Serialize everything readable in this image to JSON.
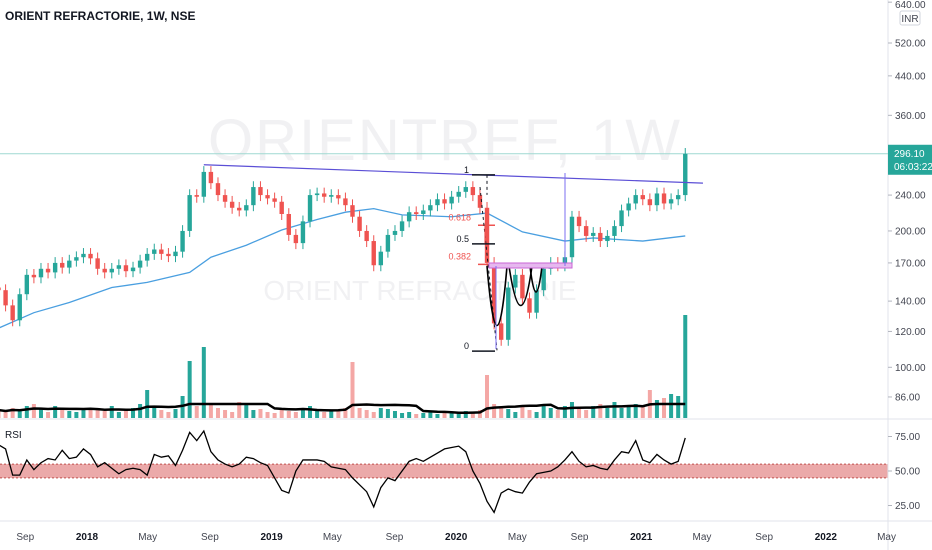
{
  "header": {
    "title": "ORIENT REFRACTORIE, 1W, NSE",
    "watermark_symbol": "ORIENTREF, 1W",
    "watermark_name": "ORIENT REFRACTORIE"
  },
  "colors": {
    "up": "#26a69a",
    "down": "#ef5350",
    "volume_down": "#f4a7a5",
    "ma": "#4a9fe0",
    "trendline": "#5b4fd6",
    "rsi_band": "#e89a9a",
    "price_tag": "#26a69a",
    "zone": "#c966d6"
  },
  "chart_data": {
    "type": "candlestick",
    "interval": "1W",
    "price_axis": {
      "scale": "log",
      "currency": "INR",
      "ticks": [
        "640.00",
        "520.00",
        "440.00",
        "360.00",
        "240.00",
        "200.00",
        "170.00",
        "140.00",
        "120.00",
        "100.00",
        "86.00"
      ],
      "tick_values": [
        640,
        520,
        440,
        360,
        240,
        200,
        170,
        140,
        120,
        100,
        86
      ]
    },
    "last_price": {
      "value": "296.10",
      "countdown": "06:03:22"
    },
    "time_axis": {
      "ticks": [
        {
          "label": "Sep",
          "date": "2017-09-01",
          "bold": false
        },
        {
          "label": "2018",
          "date": "2018-01-01",
          "bold": true
        },
        {
          "label": "May",
          "date": "2018-05-01",
          "bold": false
        },
        {
          "label": "Sep",
          "date": "2018-09-01",
          "bold": false
        },
        {
          "label": "2019",
          "date": "2019-01-01",
          "bold": true
        },
        {
          "label": "May",
          "date": "2019-05-01",
          "bold": false
        },
        {
          "label": "Sep",
          "date": "2019-09-01",
          "bold": false
        },
        {
          "label": "2020",
          "date": "2020-01-01",
          "bold": true
        },
        {
          "label": "May",
          "date": "2020-05-01",
          "bold": false
        },
        {
          "label": "Sep",
          "date": "2020-09-01",
          "bold": false
        },
        {
          "label": "2021",
          "date": "2021-01-01",
          "bold": true
        },
        {
          "label": "May",
          "date": "2021-05-01",
          "bold": false
        },
        {
          "label": "Sep",
          "date": "2021-09-01",
          "bold": false
        },
        {
          "label": "2022",
          "date": "2022-01-01",
          "bold": true
        },
        {
          "label": "May",
          "date": "2022-05-01",
          "bold": false
        }
      ]
    },
    "dates": [
      "2017-07-10",
      "2017-07-24",
      "2017-08-07",
      "2017-08-21",
      "2017-09-04",
      "2017-09-18",
      "2017-10-02",
      "2017-10-16",
      "2017-10-30",
      "2017-11-13",
      "2017-11-27",
      "2017-12-11",
      "2017-12-25",
      "2018-01-08",
      "2018-01-22",
      "2018-02-05",
      "2018-02-19",
      "2018-03-05",
      "2018-03-19",
      "2018-04-02",
      "2018-04-16",
      "2018-04-30",
      "2018-05-14",
      "2018-05-28",
      "2018-06-11",
      "2018-06-25",
      "2018-07-09",
      "2018-07-23",
      "2018-08-06",
      "2018-08-20",
      "2018-09-03",
      "2018-09-17",
      "2018-10-01",
      "2018-10-15",
      "2018-10-29",
      "2018-11-12",
      "2018-11-26",
      "2018-12-10",
      "2018-12-24",
      "2019-01-07",
      "2019-01-21",
      "2019-02-04",
      "2019-02-18",
      "2019-03-04",
      "2019-03-18",
      "2019-04-01",
      "2019-04-15",
      "2019-04-29",
      "2019-05-13",
      "2019-05-27",
      "2019-06-10",
      "2019-06-24",
      "2019-07-08",
      "2019-07-22",
      "2019-08-05",
      "2019-08-19",
      "2019-09-02",
      "2019-09-16",
      "2019-09-30",
      "2019-10-14",
      "2019-10-28",
      "2019-11-11",
      "2019-11-25",
      "2019-12-09",
      "2019-12-23",
      "2020-01-06",
      "2020-01-20",
      "2020-02-03",
      "2020-02-17",
      "2020-03-02",
      "2020-03-16",
      "2020-03-30",
      "2020-04-13",
      "2020-04-27",
      "2020-05-11",
      "2020-05-25",
      "2020-06-08",
      "2020-06-22",
      "2020-07-06",
      "2020-07-20",
      "2020-08-03",
      "2020-08-17",
      "2020-08-31",
      "2020-09-14",
      "2020-09-28",
      "2020-10-12",
      "2020-10-26",
      "2020-11-09",
      "2020-11-23",
      "2020-12-07",
      "2020-12-21",
      "2021-01-04",
      "2021-01-18",
      "2021-02-01",
      "2021-02-15",
      "2021-03-01",
      "2021-03-15",
      "2021-03-29"
    ],
    "close": [
      148,
      137,
      127,
      145,
      160,
      158,
      165,
      162,
      170,
      166,
      172,
      175,
      178,
      174,
      165,
      162,
      165,
      168,
      163,
      166,
      172,
      178,
      182,
      178,
      176,
      180,
      200,
      240,
      238,
      270,
      255,
      240,
      232,
      225,
      222,
      228,
      250,
      240,
      236,
      232,
      218,
      196,
      188,
      210,
      240,
      242,
      238,
      240,
      236,
      228,
      215,
      200,
      190,
      168,
      180,
      196,
      200,
      210,
      220,
      218,
      222,
      228,
      235,
      230,
      238,
      244,
      250,
      240,
      225,
      170,
      125,
      115,
      150,
      160,
      142,
      132,
      148,
      165,
      170,
      168,
      175,
      215,
      205,
      195,
      198,
      190,
      195,
      205,
      222,
      230,
      240,
      235,
      228,
      242,
      230,
      235,
      240,
      296
    ],
    "volume": [
      8,
      6,
      10,
      7,
      12,
      14,
      9,
      6,
      12,
      8,
      7,
      6,
      9,
      10,
      8,
      7,
      12,
      6,
      9,
      10,
      14,
      28,
      10,
      8,
      6,
      9,
      22,
      57,
      12,
      71,
      14,
      10,
      8,
      6,
      16,
      14,
      8,
      9,
      6,
      5,
      9,
      7,
      6,
      10,
      12,
      8,
      6,
      7,
      8,
      10,
      56,
      10,
      8,
      6,
      10,
      9,
      7,
      5,
      6,
      4,
      5,
      6,
      4,
      5,
      6,
      5,
      7,
      6,
      8,
      43,
      14,
      10,
      9,
      6,
      12,
      8,
      6,
      14,
      10,
      8,
      12,
      16,
      10,
      8,
      12,
      14,
      10,
      16,
      10,
      12,
      14,
      12,
      28,
      18,
      20,
      24,
      22,
      103
    ],
    "moving_average": [
      {
        "date": "2017-07-10",
        "value": 122
      },
      {
        "date": "2017-09-18",
        "value": 132
      },
      {
        "date": "2017-11-27",
        "value": 139
      },
      {
        "date": "2018-02-19",
        "value": 150
      },
      {
        "date": "2018-04-30",
        "value": 154
      },
      {
        "date": "2018-07-23",
        "value": 162
      },
      {
        "date": "2018-09-03",
        "value": 175
      },
      {
        "date": "2018-11-12",
        "value": 186
      },
      {
        "date": "2019-01-21",
        "value": 201
      },
      {
        "date": "2019-04-01",
        "value": 212
      },
      {
        "date": "2019-05-27",
        "value": 220
      },
      {
        "date": "2019-07-22",
        "value": 224
      },
      {
        "date": "2019-09-16",
        "value": 217
      },
      {
        "date": "2019-12-23",
        "value": 215
      },
      {
        "date": "2020-03-02",
        "value": 219
      },
      {
        "date": "2020-05-11",
        "value": 199
      },
      {
        "date": "2020-08-03",
        "value": 190
      },
      {
        "date": "2020-09-28",
        "value": 193
      },
      {
        "date": "2021-01-04",
        "value": 190
      },
      {
        "date": "2021-03-29",
        "value": 195
      }
    ],
    "rsi": {
      "label": "RSI",
      "ticks": [
        "75.00",
        "50.00",
        "25.00"
      ],
      "tick_values": [
        75,
        50,
        25
      ],
      "band": [
        45,
        55
      ],
      "values": [
        69,
        66,
        47,
        47,
        58,
        51,
        56,
        59,
        58,
        65,
        59,
        60,
        66,
        62,
        53,
        56,
        52,
        48,
        51,
        52,
        51,
        47,
        62,
        60,
        61,
        54,
        65,
        78,
        72,
        79,
        64,
        58,
        55,
        53,
        55,
        60,
        59,
        56,
        54,
        45,
        36,
        34,
        50,
        58,
        58,
        58,
        57,
        53,
        52,
        51,
        45,
        40,
        35,
        24,
        38,
        45,
        43,
        50,
        57,
        59,
        57,
        60,
        63,
        66,
        67,
        68,
        64,
        50,
        41,
        28,
        20,
        34,
        37,
        35,
        34,
        42,
        48,
        49,
        50,
        53,
        58,
        64,
        57,
        53,
        54,
        52,
        51,
        58,
        64,
        63,
        72,
        58,
        56,
        62,
        58,
        55,
        57,
        74
      ]
    },
    "drawings": {
      "trendline": {
        "from": {
          "date": "2018-08-20",
          "price": 280
        },
        "to": {
          "date": "2021-05-03",
          "price": 255
        }
      },
      "fibonacci": {
        "high": 266,
        "low": 108.6,
        "levels": [
          {
            "label": "1",
            "ratio": 1,
            "color": "#131722"
          },
          {
            "label": "0.618",
            "ratio": 0.618,
            "color": "#ef5350"
          },
          {
            "label": "0.5",
            "ratio": 0.5,
            "color": "#131722"
          },
          {
            "label": "0.382",
            "ratio": 0.382,
            "color": "#ef5350"
          },
          {
            "label": "0",
            "ratio": 0,
            "color": "#131722"
          }
        ]
      }
    }
  }
}
